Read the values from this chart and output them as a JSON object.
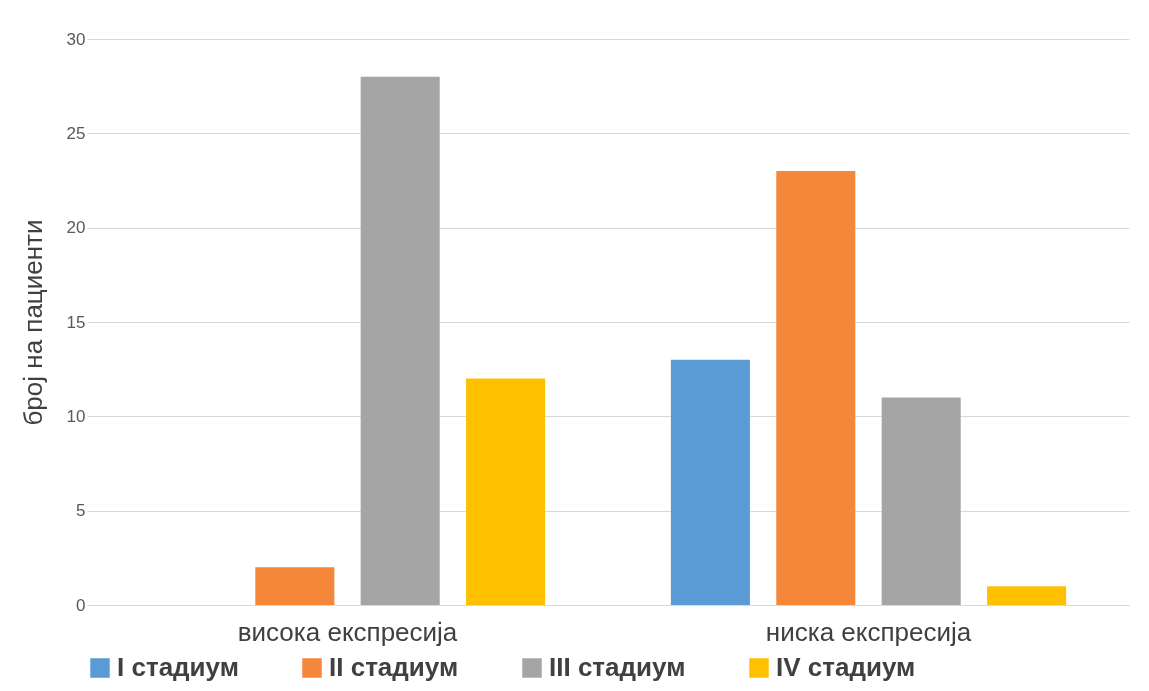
{
  "chart_data": {
    "type": "bar",
    "ylabel": "број на пациенти",
    "categories": [
      "висока експресија",
      "ниска експресија"
    ],
    "series": [
      {
        "name": "I стадиум",
        "color": "#5b9bd5",
        "values": [
          0,
          13
        ]
      },
      {
        "name": "II стадиум",
        "color": "#f5873a",
        "values": [
          2,
          23
        ]
      },
      {
        "name": "III стадиум",
        "color": "#a5a5a5",
        "values": [
          28,
          11
        ]
      },
      {
        "name": "IV стадиум",
        "color": "#ffc000",
        "values": [
          12,
          1
        ]
      }
    ],
    "ylim": [
      0,
      30
    ],
    "yticks": [
      0,
      5,
      10,
      15,
      20,
      25,
      30
    ],
    "grid": "y",
    "legend": "bottom"
  }
}
